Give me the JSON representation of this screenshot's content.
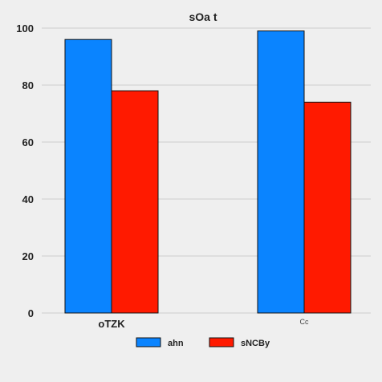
{
  "chart_data": {
    "type": "bar",
    "title": "sOa t",
    "xlabel": "",
    "ylabel": "",
    "categories": [
      "oTZK",
      "Cc"
    ],
    "series": [
      {
        "name": "ahn",
        "values": [
          96,
          99
        ],
        "color": "#0a84ff"
      },
      {
        "name": "sNCBy",
        "values": [
          78,
          74
        ],
        "color": "#ff1a00"
      }
    ],
    "ylim": [
      0,
      100
    ],
    "yticks": [
      0,
      20,
      40,
      60,
      80,
      100
    ],
    "grid": true,
    "legend_position": "bottom-center"
  }
}
